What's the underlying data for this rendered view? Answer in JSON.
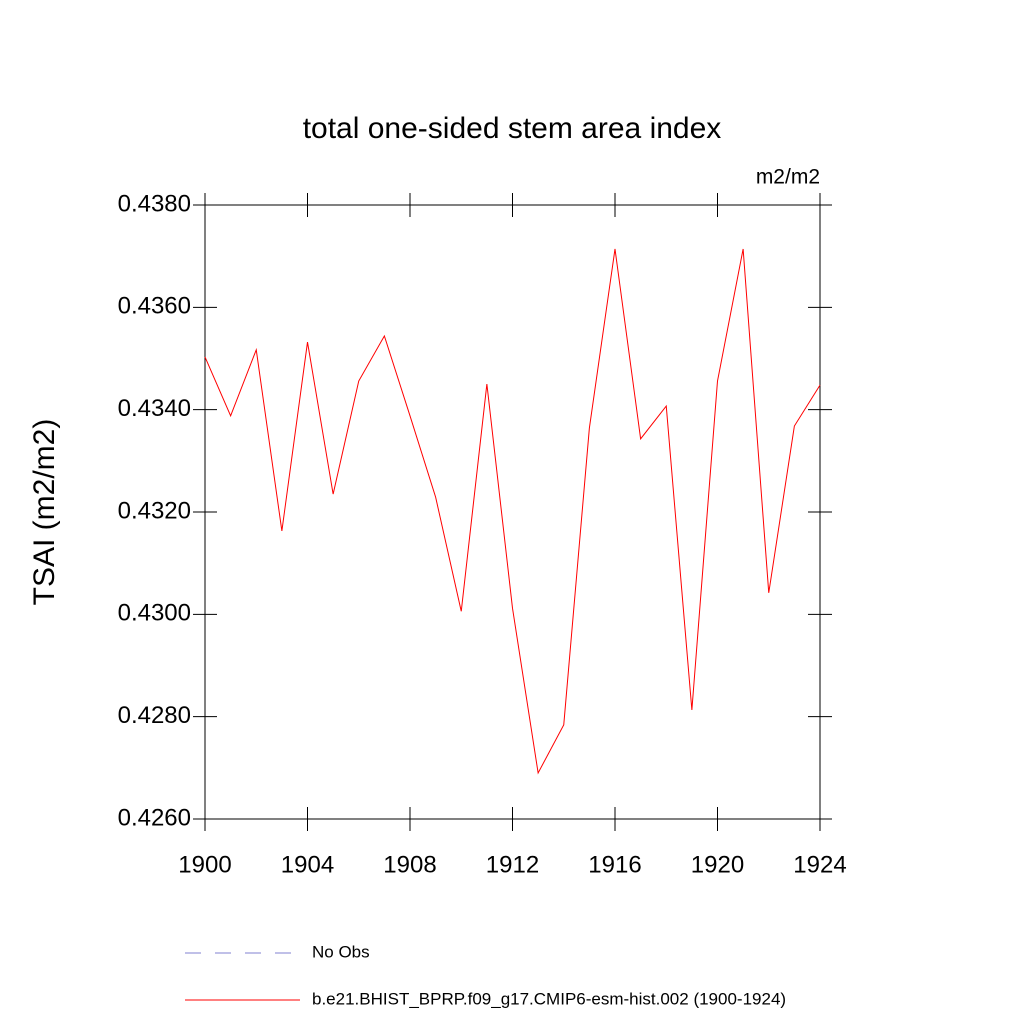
{
  "chart_data": {
    "type": "line",
    "title": "total one-sided stem area index",
    "units": "m2/m2",
    "y_label": "TSAI  (m2/m2)",
    "x": [
      1900,
      1901,
      1902,
      1903,
      1904,
      1905,
      1906,
      1907,
      1908,
      1909,
      1910,
      1911,
      1912,
      1913,
      1914,
      1915,
      1916,
      1917,
      1918,
      1919,
      1920,
      1921,
      1922,
      1923,
      1924
    ],
    "series": [
      {
        "name": "No Obs",
        "color": "#8080d0",
        "dash": true,
        "values": [
          null,
          null,
          null,
          null,
          null,
          null,
          null,
          null,
          null,
          null,
          null,
          null,
          null,
          null,
          null,
          null,
          null,
          null,
          null,
          null,
          null,
          null,
          null,
          null,
          null
        ]
      },
      {
        "name": "b.e21.BHIST_BPRP.f09_g17.CMIP6-esm-hist.002 (1900-1924)",
        "color": "#ff0000",
        "dash": false,
        "values": [
          0.43503,
          0.43388,
          0.43517,
          0.43163,
          0.43532,
          0.43235,
          0.43456,
          0.43544,
          0.43388,
          0.43229,
          0.43006,
          0.4345,
          0.43012,
          0.4269,
          0.42784,
          0.43364,
          0.43714,
          0.43343,
          0.43407,
          0.42813,
          0.43456,
          0.43714,
          0.43042,
          0.43368,
          0.43448
        ]
      }
    ],
    "xlim": [
      1900,
      1924
    ],
    "xticks": [
      1900,
      1904,
      1908,
      1912,
      1916,
      1920,
      1924
    ],
    "ylim": [
      0.426,
      0.438
    ],
    "yticks": [
      {
        "value": 0.426,
        "label": "0.4260"
      },
      {
        "value": 0.428,
        "label": "0.4280"
      },
      {
        "value": 0.43,
        "label": "0.4300"
      },
      {
        "value": 0.432,
        "label": "0.4320"
      },
      {
        "value": 0.434,
        "label": "0.4340"
      },
      {
        "value": 0.436,
        "label": "0.4360"
      },
      {
        "value": 0.438,
        "label": "0.4380"
      }
    ]
  }
}
